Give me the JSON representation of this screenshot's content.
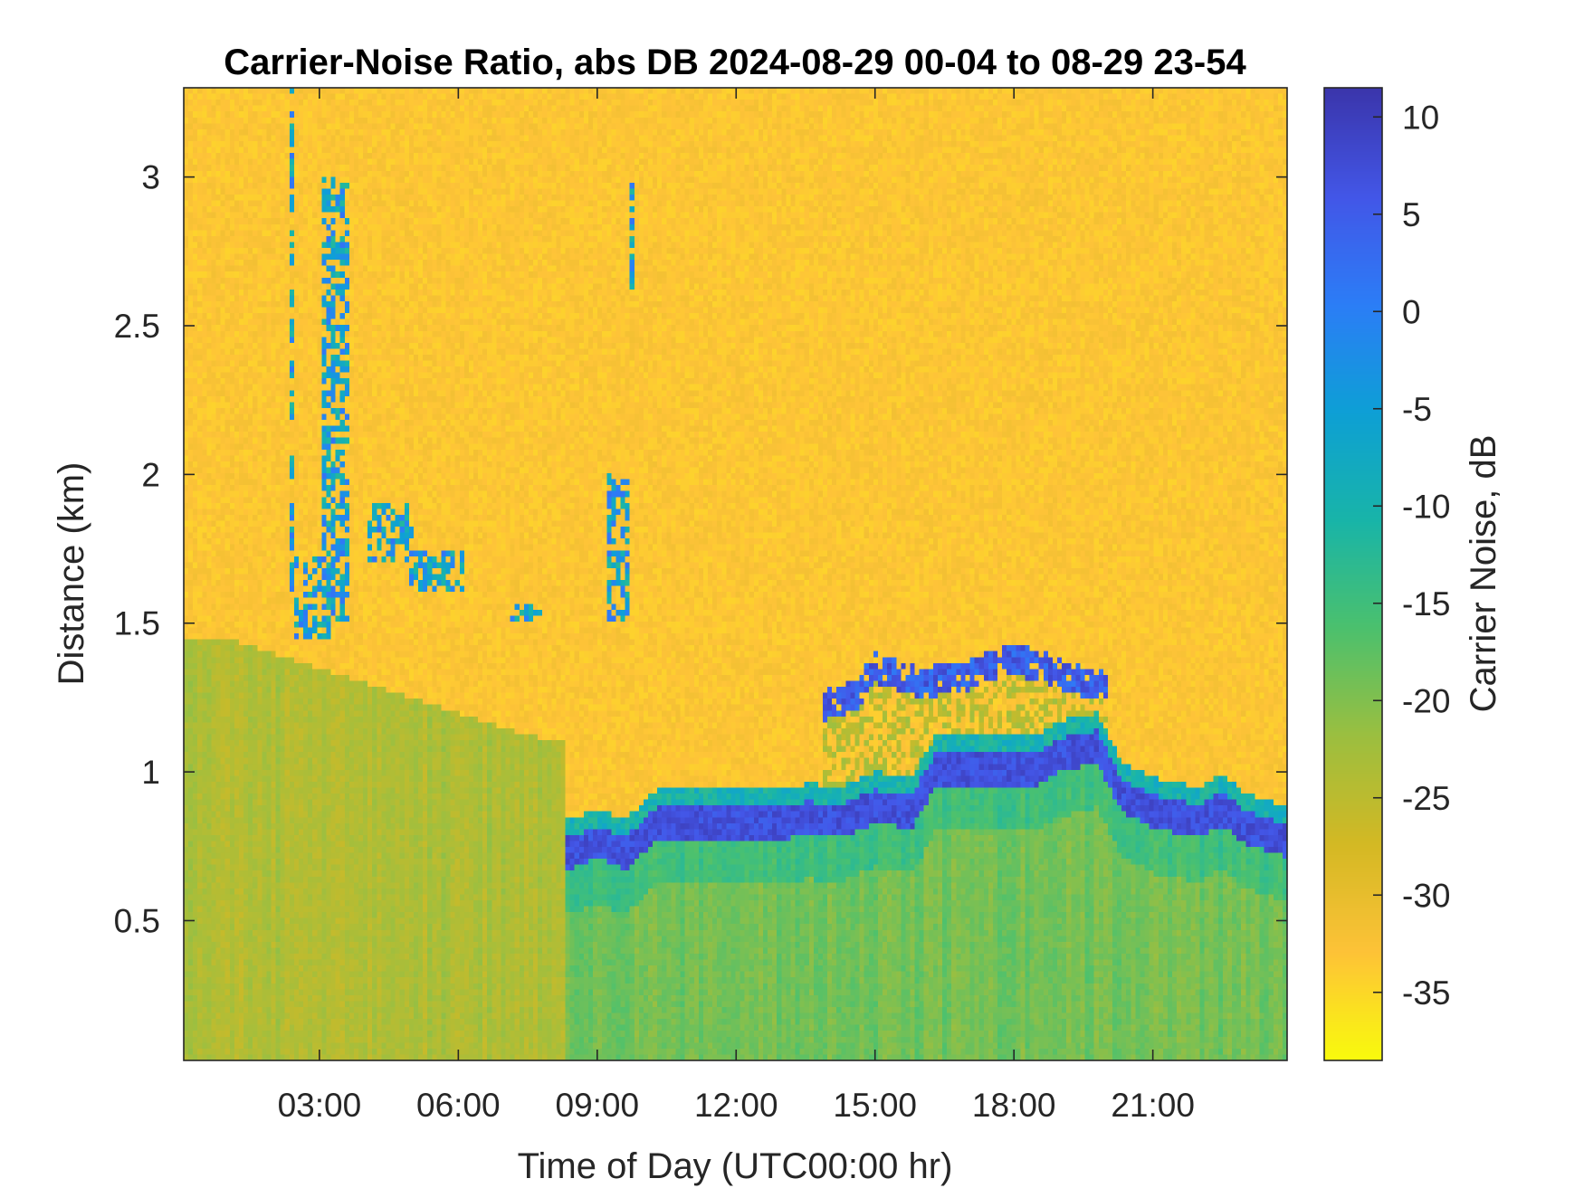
{
  "chart_data": {
    "type": "heatmap",
    "title": "Carrier-Noise Ratio, abs DB 2024-08-29 00-04 to 08-29 23-54",
    "xlabel": "Time of Day (UTC00:00 hr)",
    "ylabel": "Distance (km)",
    "colorbar_label": "Carrier Noise, dB",
    "xlim_hours": [
      0.07,
      23.9
    ],
    "ylim_km": [
      0.03,
      3.3
    ],
    "clim_db": [
      -38.5,
      11.5
    ],
    "x_ticks": [
      {
        "hour": 3,
        "label": "03:00"
      },
      {
        "hour": 6,
        "label": "06:00"
      },
      {
        "hour": 9,
        "label": "09:00"
      },
      {
        "hour": 12,
        "label": "12:00"
      },
      {
        "hour": 15,
        "label": "15:00"
      },
      {
        "hour": 18,
        "label": "18:00"
      },
      {
        "hour": 21,
        "label": "21:00"
      }
    ],
    "y_ticks": [
      {
        "km": 0.5,
        "label": "0.5"
      },
      {
        "km": 1,
        "label": "1"
      },
      {
        "km": 1.5,
        "label": "1.5"
      },
      {
        "km": 2,
        "label": "2"
      },
      {
        "km": 2.5,
        "label": "2.5"
      },
      {
        "km": 3,
        "label": "3"
      }
    ],
    "colorbar_ticks": [
      {
        "db": 10,
        "label": "10"
      },
      {
        "db": 5,
        "label": "5"
      },
      {
        "db": 0,
        "label": "0"
      },
      {
        "db": -5,
        "label": "-5"
      },
      {
        "db": -10,
        "label": "-10"
      },
      {
        "db": -15,
        "label": "-15"
      },
      {
        "db": -20,
        "label": "-20"
      },
      {
        "db": -25,
        "label": "-25"
      },
      {
        "db": -30,
        "label": "-30"
      },
      {
        "db": -35,
        "label": "-35"
      }
    ],
    "colormap": "parula (reversed)",
    "colormap_stops": [
      "#f9fb0e",
      "#fec338",
      "#d4b924",
      "#9cbf40",
      "#4cc16e",
      "#19b5a9",
      "#0ea0d6",
      "#2c7ef7",
      "#4357e8",
      "#3b36ac"
    ],
    "background_db": -33,
    "boundary_layer_db": -22,
    "cloud_base_km_by_hour": [
      [
        8.4,
        0.72
      ],
      [
        9.0,
        0.76
      ],
      [
        9.6,
        0.72
      ],
      [
        10.3,
        0.82
      ],
      [
        11.5,
        0.82
      ],
      [
        13.0,
        0.82
      ],
      [
        13.5,
        0.84
      ],
      [
        14.3,
        0.83
      ],
      [
        15.0,
        0.88
      ],
      [
        15.8,
        0.86
      ],
      [
        16.3,
        1.0
      ],
      [
        17.5,
        1.0
      ],
      [
        18.5,
        1.0
      ],
      [
        19.0,
        1.05
      ],
      [
        19.8,
        1.08
      ],
      [
        20.3,
        0.92
      ],
      [
        21.0,
        0.86
      ],
      [
        22.0,
        0.83
      ],
      [
        22.5,
        0.87
      ],
      [
        23.0,
        0.81
      ],
      [
        23.9,
        0.76
      ]
    ],
    "upper_layer_km_by_hour": [
      [
        13.9,
        1.22
      ],
      [
        14.6,
        1.26
      ],
      [
        15.0,
        1.35
      ],
      [
        16.0,
        1.3
      ],
      [
        17.0,
        1.32
      ],
      [
        17.8,
        1.38
      ],
      [
        18.5,
        1.36
      ],
      [
        19.5,
        1.3
      ],
      [
        20.0,
        1.29
      ]
    ],
    "night_aerosol_segments": [
      {
        "hours": [
          2.35,
          2.45
        ],
        "km": [
          1.6,
          3.3
        ]
      },
      {
        "hours": [
          2.5,
          3.2
        ],
        "km": [
          1.45,
          1.72
        ]
      },
      {
        "hours": [
          3.0,
          3.6
        ],
        "km": [
          1.5,
          3.0
        ]
      },
      {
        "hours": [
          4.0,
          5.0
        ],
        "km": [
          1.7,
          1.9
        ]
      },
      {
        "hours": [
          4.9,
          6.1
        ],
        "km": [
          1.6,
          1.75
        ]
      },
      {
        "hours": [
          7.0,
          7.8
        ],
        "km": [
          1.5,
          1.57
        ]
      },
      {
        "hours": [
          9.7,
          9.8
        ],
        "km": [
          2.6,
          3.0
        ]
      },
      {
        "hours": [
          9.2,
          9.7
        ],
        "km": [
          1.5,
          2.0
        ]
      }
    ]
  }
}
